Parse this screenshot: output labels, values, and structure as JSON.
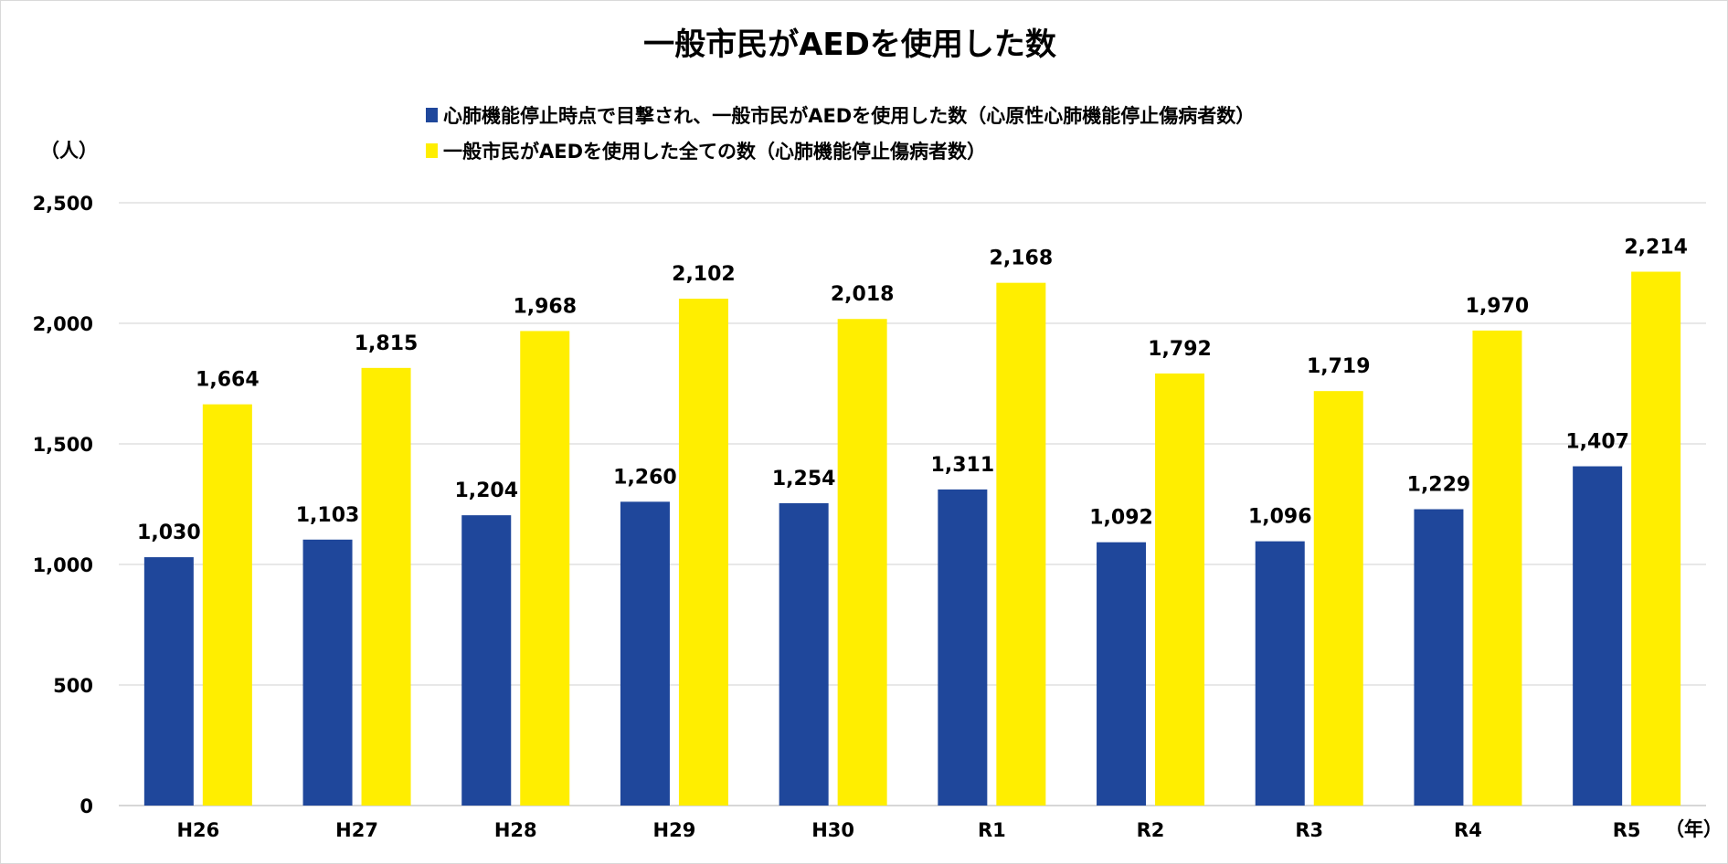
{
  "chart_data": {
    "type": "bar",
    "title": "一般市民がAEDを使用した数",
    "ylabel": "（人）",
    "xlabel": "（年）",
    "categories": [
      "H26",
      "H27",
      "H28",
      "H29",
      "H30",
      "R1",
      "R2",
      "R3",
      "R4",
      "R5"
    ],
    "series": [
      {
        "name": "心肺機能停止時点で目撃され、一般市民がAEDを使用した数（心原性心肺機能停止傷病者数）",
        "color": "#1f479b",
        "values": [
          1030,
          1103,
          1204,
          1260,
          1254,
          1311,
          1092,
          1096,
          1229,
          1407
        ]
      },
      {
        "name": "一般市民がAEDを使用した全ての数（心肺機能停止傷病者数）",
        "color": "#ffee00",
        "values": [
          1664,
          1815,
          1968,
          2102,
          2018,
          2168,
          1792,
          1719,
          1970,
          2214
        ]
      }
    ],
    "ylim": [
      0,
      2500
    ],
    "yticks": [
      0,
      500,
      1000,
      1500,
      2000,
      2500
    ],
    "ytick_labels": [
      "0",
      "500",
      "1,000",
      "1,500",
      "2,000",
      "2,500"
    ],
    "grid": true,
    "legend_position": "top",
    "data_labels": true
  }
}
